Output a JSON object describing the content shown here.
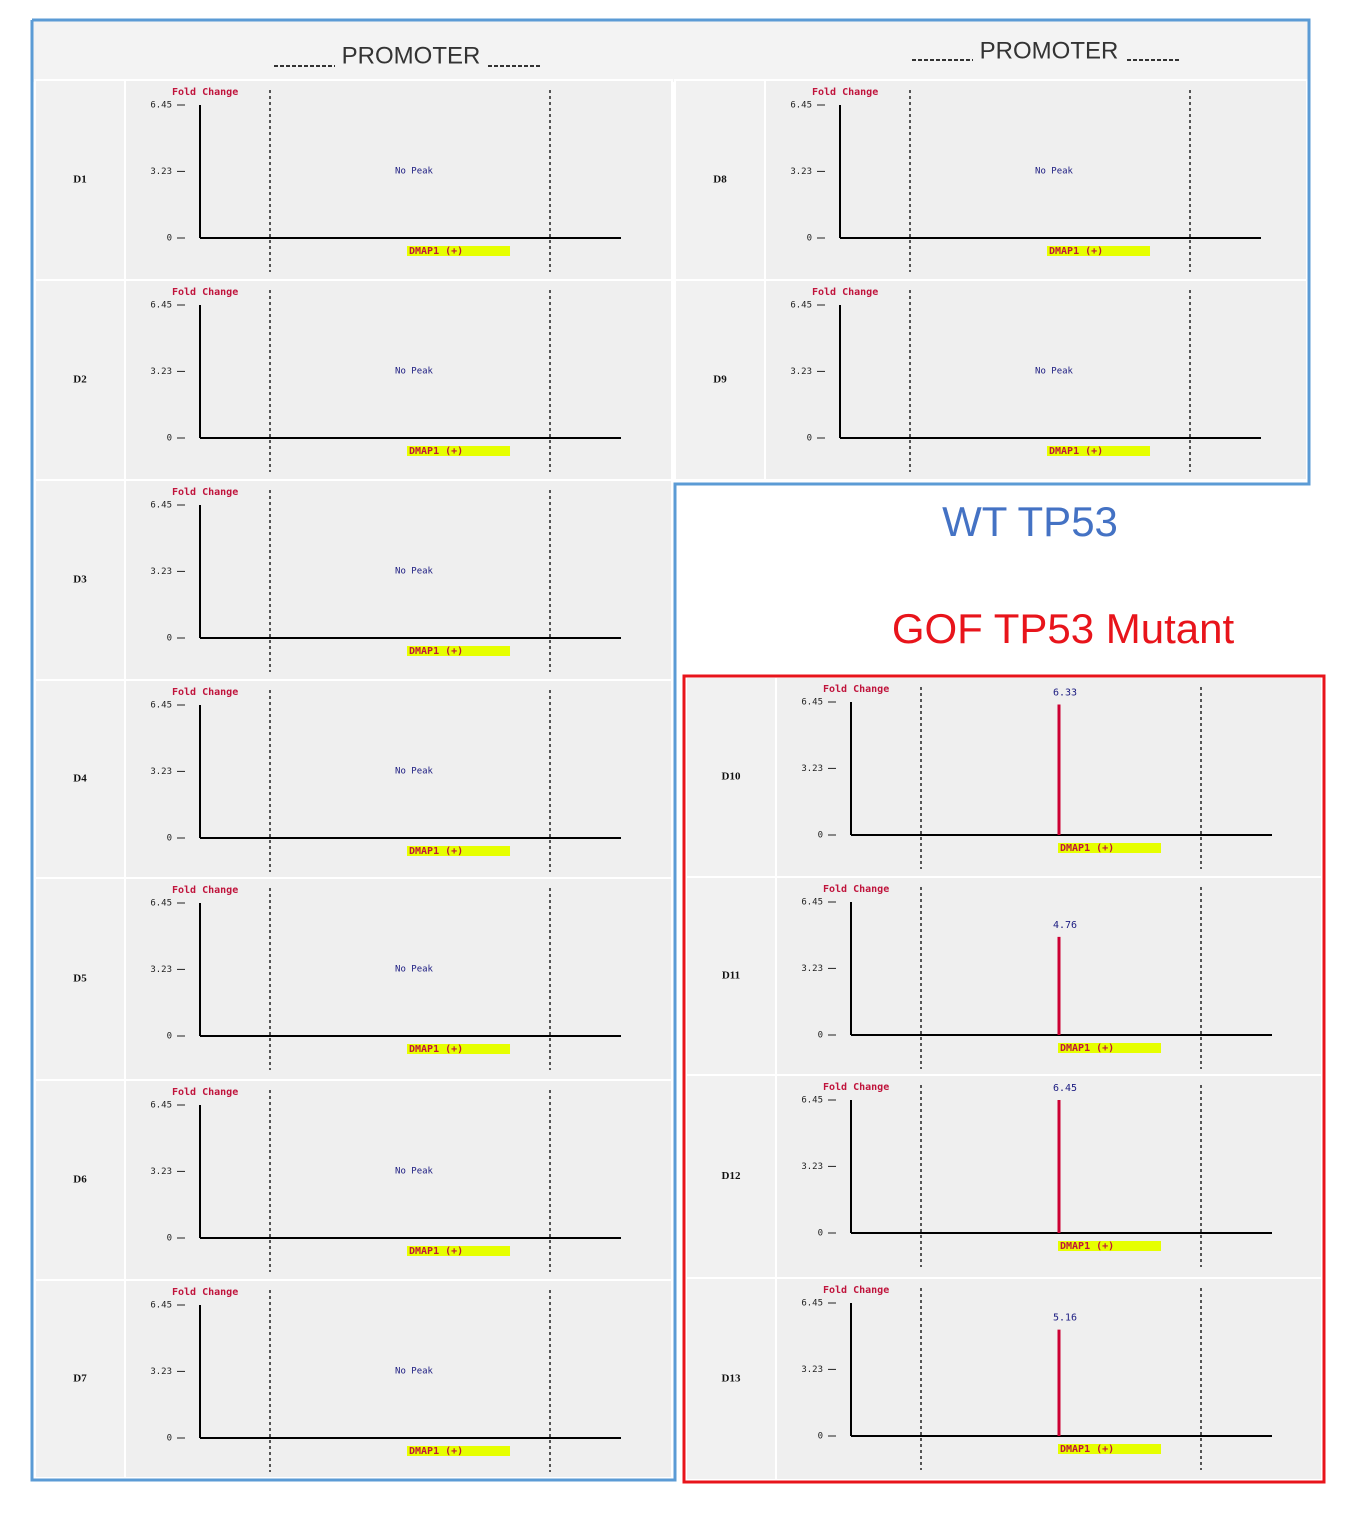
{
  "header": {
    "promoter_left": "PROMOTER",
    "promoter_right": "PROMOTER",
    "wt_label": "WT TP53",
    "gof_label": "GOF TP53 Mutant"
  },
  "chart_data": [
    {
      "type": "bar",
      "title": "D1",
      "y_label": "Fold Change",
      "annotation": "No Peak",
      "gene": "DMAP1 (+)",
      "categories": [],
      "values": [],
      "color": "#cc0033",
      "ylim": [
        0,
        6.45
      ],
      "yticks": [
        0,
        3.23,
        6.45
      ]
    },
    {
      "type": "bar",
      "title": "D2",
      "y_label": "Fold Change",
      "annotation": "No Peak",
      "gene": "DMAP1 (+)",
      "categories": [],
      "values": [],
      "color": "#cc0033",
      "ylim": [
        0,
        6.45
      ],
      "yticks": [
        0,
        3.23,
        6.45
      ]
    },
    {
      "type": "bar",
      "title": "D3",
      "y_label": "Fold Change",
      "annotation": "No Peak",
      "gene": "DMAP1 (+)",
      "categories": [],
      "values": [],
      "color": "#cc0033",
      "ylim": [
        0,
        6.45
      ],
      "yticks": [
        0,
        3.23,
        6.45
      ]
    },
    {
      "type": "bar",
      "title": "D4",
      "y_label": "Fold Change",
      "annotation": "No Peak",
      "gene": "DMAP1 (+)",
      "categories": [],
      "values": [],
      "color": "#cc0033",
      "ylim": [
        0,
        6.45
      ],
      "yticks": [
        0,
        3.23,
        6.45
      ]
    },
    {
      "type": "bar",
      "title": "D5",
      "y_label": "Fold Change",
      "annotation": "No Peak",
      "gene": "DMAP1 (+)",
      "categories": [],
      "values": [],
      "color": "#cc0033",
      "ylim": [
        0,
        6.45
      ],
      "yticks": [
        0,
        3.23,
        6.45
      ]
    },
    {
      "type": "bar",
      "title": "D6",
      "y_label": "Fold Change",
      "annotation": "No Peak",
      "gene": "DMAP1 (+)",
      "categories": [],
      "values": [],
      "color": "#cc0033",
      "ylim": [
        0,
        6.45
      ],
      "yticks": [
        0,
        3.23,
        6.45
      ]
    },
    {
      "type": "bar",
      "title": "D7",
      "y_label": "Fold Change",
      "annotation": "No Peak",
      "gene": "DMAP1 (+)",
      "categories": [],
      "values": [],
      "color": "#cc0033",
      "ylim": [
        0,
        6.45
      ],
      "yticks": [
        0,
        3.23,
        6.45
      ]
    },
    {
      "type": "bar",
      "title": "D8",
      "y_label": "Fold Change",
      "annotation": "No Peak",
      "gene": "DMAP1 (+)",
      "categories": [],
      "values": [],
      "color": "#cc0033",
      "ylim": [
        0,
        6.45
      ],
      "yticks": [
        0,
        3.23,
        6.45
      ]
    },
    {
      "type": "bar",
      "title": "D9",
      "y_label": "Fold Change",
      "annotation": "No Peak",
      "gene": "DMAP1 (+)",
      "categories": [],
      "values": [],
      "color": "#cc0033",
      "ylim": [
        0,
        6.45
      ],
      "yticks": [
        0,
        3.23,
        6.45
      ]
    },
    {
      "type": "bar",
      "title": "D10",
      "y_label": "Fold Change",
      "gene": "DMAP1 (+)",
      "categories": [
        null
      ],
      "values": [
        6.33
      ],
      "color": "#cc0033",
      "ylim": [
        0,
        6.45
      ],
      "yticks": [
        0,
        3.23,
        6.45
      ]
    },
    {
      "type": "bar",
      "title": "D11",
      "y_label": "Fold Change",
      "gene": "DMAP1 (+)",
      "categories": [
        null
      ],
      "values": [
        4.76
      ],
      "color": "#cc0033",
      "ylim": [
        0,
        6.45
      ],
      "yticks": [
        0,
        3.23,
        6.45
      ]
    },
    {
      "type": "bar",
      "title": "D12",
      "y_label": "Fold Change",
      "gene": "DMAP1 (+)",
      "categories": [
        null
      ],
      "values": [
        6.45
      ],
      "color": "#cc0033",
      "ylim": [
        0,
        6.45
      ],
      "yticks": [
        0,
        3.23,
        6.45
      ]
    },
    {
      "type": "bar",
      "title": "D13",
      "y_label": "Fold Change",
      "gene": "DMAP1 (+)",
      "categories": [
        null
      ],
      "values": [
        5.16
      ],
      "color": "#cc0033",
      "ylim": [
        0,
        6.45
      ],
      "yticks": [
        0,
        3.23,
        6.45
      ]
    }
  ]
}
